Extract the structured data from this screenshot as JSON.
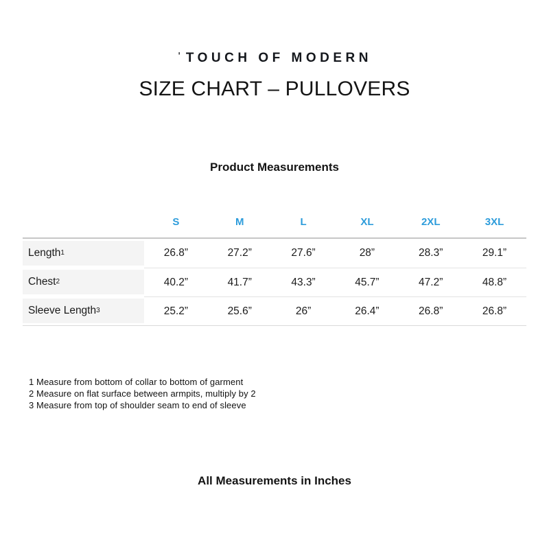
{
  "brand": {
    "logo_mark": "ˈ",
    "logo_text": "TOUCH OF MODERN"
  },
  "page": {
    "title": "SIZE CHART – PULLOVERS",
    "subtitle": "Product Measurements",
    "bottom_note": "All Measurements in Inches"
  },
  "colors": {
    "size_header_blue": "#2d9cdb",
    "row_label_bg": "#f4f4f4",
    "table_top_border": "#c6c6c6",
    "row_divider": "#e3e3e3",
    "text": "#1b1b1b"
  },
  "table": {
    "size_headers": [
      "S",
      "M",
      "L",
      "XL",
      "2XL",
      "3XL"
    ],
    "rows": [
      {
        "label": "Length",
        "sup": "1",
        "values": [
          "26.8”",
          "27.2”",
          "27.6”",
          "28”",
          "28.3”",
          "29.1”"
        ]
      },
      {
        "label": "Chest",
        "sup": "2",
        "values": [
          "40.2”",
          "41.7”",
          "43.3”",
          "45.7”",
          "47.2”",
          "48.8”"
        ]
      },
      {
        "label": "Sleeve Length",
        "sup": "3",
        "values": [
          "25.2”",
          "25.6”",
          "26”",
          "26.4”",
          "26.8”",
          "26.8”"
        ]
      }
    ]
  },
  "footnotes": [
    "1 Measure from bottom of collar to bottom of garment",
    "2 Measure on flat surface between armpits, multiply by 2",
    "3 Measure from top of shoulder seam to end of sleeve"
  ]
}
